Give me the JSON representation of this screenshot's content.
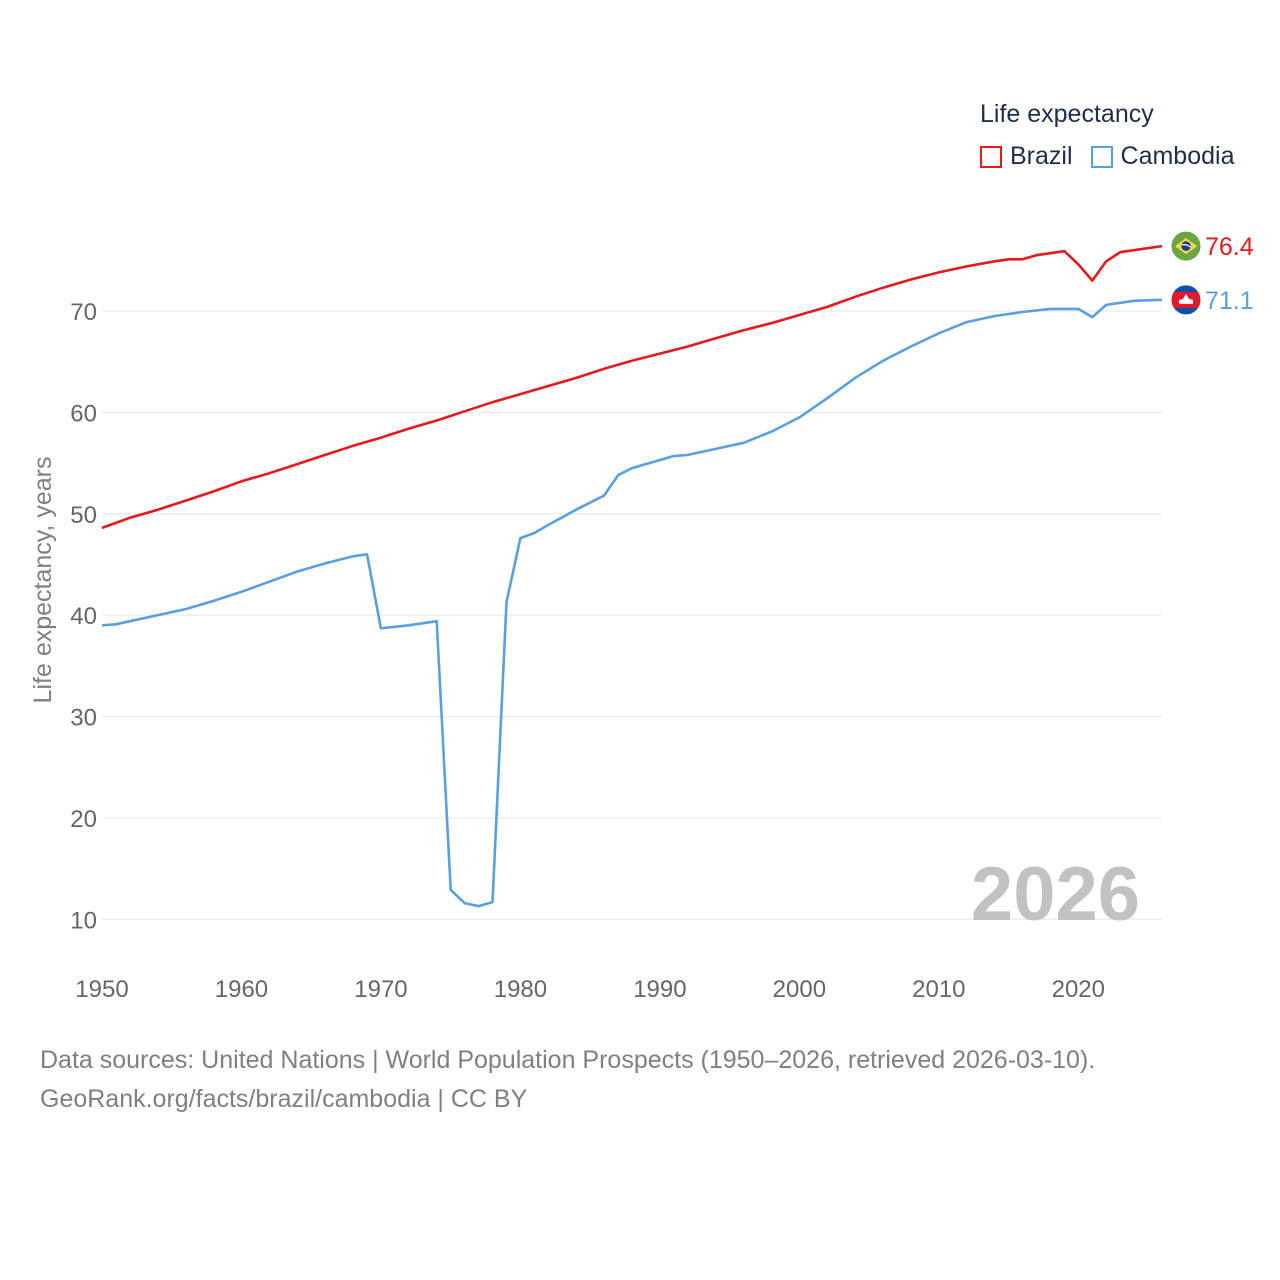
{
  "chart_data": {
    "type": "line",
    "legend_title": "Life expectancy",
    "ylabel": "Life expectancy, years",
    "big_year": "2026",
    "xlim": [
      1950,
      2026
    ],
    "ylim": [
      5,
      77
    ],
    "x_ticks": [
      1950,
      1960,
      1970,
      1980,
      1990,
      2000,
      2010,
      2020
    ],
    "y_ticks": [
      10,
      20,
      30,
      40,
      50,
      60,
      70
    ],
    "series": [
      {
        "name": "Brazil",
        "color": "#e41a1c",
        "end_label": "76.4",
        "flag_icon": "brazil-flag-icon",
        "points": [
          [
            1950,
            48.6
          ],
          [
            1952,
            49.6
          ],
          [
            1954,
            50.4
          ],
          [
            1956,
            51.3
          ],
          [
            1958,
            52.2
          ],
          [
            1960,
            53.2
          ],
          [
            1962,
            54.0
          ],
          [
            1964,
            54.9
          ],
          [
            1966,
            55.8
          ],
          [
            1968,
            56.7
          ],
          [
            1970,
            57.5
          ],
          [
            1972,
            58.4
          ],
          [
            1974,
            59.2
          ],
          [
            1976,
            60.1
          ],
          [
            1978,
            61.0
          ],
          [
            1980,
            61.8
          ],
          [
            1982,
            62.6
          ],
          [
            1984,
            63.4
          ],
          [
            1986,
            64.3
          ],
          [
            1988,
            65.1
          ],
          [
            1990,
            65.8
          ],
          [
            1992,
            66.5
          ],
          [
            1994,
            67.3
          ],
          [
            1996,
            68.1
          ],
          [
            1998,
            68.8
          ],
          [
            2000,
            69.6
          ],
          [
            2002,
            70.4
          ],
          [
            2004,
            71.4
          ],
          [
            2006,
            72.3
          ],
          [
            2008,
            73.1
          ],
          [
            2010,
            73.8
          ],
          [
            2012,
            74.4
          ],
          [
            2014,
            74.9
          ],
          [
            2015,
            75.1
          ],
          [
            2016,
            75.1
          ],
          [
            2017,
            75.5
          ],
          [
            2019,
            75.9
          ],
          [
            2020,
            74.6
          ],
          [
            2021,
            73.0
          ],
          [
            2022,
            74.9
          ],
          [
            2023,
            75.8
          ],
          [
            2026,
            76.4
          ]
        ]
      },
      {
        "name": "Cambodia",
        "color": "#5aa0e0",
        "end_label": "71.1",
        "flag_icon": "cambodia-flag-icon",
        "points": [
          [
            1950,
            39.0
          ],
          [
            1951,
            39.1
          ],
          [
            1954,
            40.0
          ],
          [
            1956,
            40.6
          ],
          [
            1958,
            41.4
          ],
          [
            1960,
            42.3
          ],
          [
            1962,
            43.3
          ],
          [
            1964,
            44.3
          ],
          [
            1966,
            45.1
          ],
          [
            1968,
            45.8
          ],
          [
            1969,
            46.0
          ],
          [
            1970,
            38.7
          ],
          [
            1972,
            39.0
          ],
          [
            1974,
            39.4
          ],
          [
            1975,
            12.9
          ],
          [
            1976,
            11.6
          ],
          [
            1977,
            11.3
          ],
          [
            1978,
            11.7
          ],
          [
            1979,
            41.3
          ],
          [
            1980,
            47.6
          ],
          [
            1981,
            48.1
          ],
          [
            1982,
            48.9
          ],
          [
            1984,
            50.4
          ],
          [
            1986,
            51.8
          ],
          [
            1987,
            53.8
          ],
          [
            1988,
            54.5
          ],
          [
            1990,
            55.3
          ],
          [
            1991,
            55.7
          ],
          [
            1992,
            55.8
          ],
          [
            1994,
            56.4
          ],
          [
            1996,
            57.0
          ],
          [
            1998,
            58.1
          ],
          [
            2000,
            59.5
          ],
          [
            2002,
            61.4
          ],
          [
            2004,
            63.4
          ],
          [
            2006,
            65.1
          ],
          [
            2008,
            66.5
          ],
          [
            2010,
            67.8
          ],
          [
            2012,
            68.9
          ],
          [
            2014,
            69.5
          ],
          [
            2016,
            69.9
          ],
          [
            2018,
            70.2
          ],
          [
            2020,
            70.2
          ],
          [
            2021,
            69.4
          ],
          [
            2022,
            70.6
          ],
          [
            2024,
            71.0
          ],
          [
            2026,
            71.1
          ]
        ]
      }
    ]
  },
  "footer": {
    "line1": "Data sources: United Nations | World Population Prospects (1950–2026, retrieved 2026-03-10).",
    "line2": "GeoRank.org/facts/brazil/cambodia | CC BY"
  }
}
